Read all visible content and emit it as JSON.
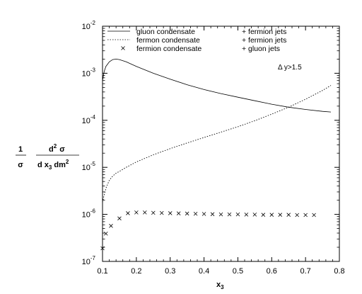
{
  "chart_data": {
    "type": "line",
    "title": "",
    "xlabel": "x",
    "xlabel_sub": "3",
    "ylabel": {
      "numerator_1": "1",
      "denominator_1": "σ",
      "numerator_2": "d",
      "numerator_2_sup": "2",
      "numerator_2_rest": "σ",
      "denominator_2a": "d x",
      "denominator_2_sub": "3",
      "denominator_2b": "dm",
      "denominator_2_sup": "2"
    },
    "xlim": [
      0.1,
      0.8
    ],
    "ylim": [
      1e-07,
      0.01
    ],
    "yscale": "log",
    "x_ticks": [
      "0.1",
      "0.2",
      "0.3",
      "0.4",
      "0.5",
      "0.6",
      "0.7",
      "0.8"
    ],
    "x_tick_values": [
      0.1,
      0.2,
      0.3,
      0.4,
      0.5,
      0.6,
      0.7,
      0.8
    ],
    "y_ticks": [
      {
        "base": "10",
        "exp": "-7"
      },
      {
        "base": "10",
        "exp": "-6"
      },
      {
        "base": "10",
        "exp": "-5"
      },
      {
        "base": "10",
        "exp": "-4"
      },
      {
        "base": "10",
        "exp": "-3"
      },
      {
        "base": "10",
        "exp": "-2"
      }
    ],
    "y_tick_values": [
      1e-07,
      1e-06,
      1e-05,
      0.0001,
      0.001,
      0.01
    ],
    "grid": false,
    "legend_position": "top-right",
    "annotation": {
      "text": "Δ y>1.5"
    },
    "series": [
      {
        "name": "gluon condensate + fermion jets",
        "style": "solid",
        "x": [
          0.1,
          0.105,
          0.11,
          0.12,
          0.13,
          0.14,
          0.15,
          0.17,
          0.2,
          0.25,
          0.3,
          0.35,
          0.4,
          0.45,
          0.5,
          0.55,
          0.6,
          0.65,
          0.7,
          0.75,
          0.775
        ],
        "y": [
          0.0007,
          0.0011,
          0.0014,
          0.00175,
          0.00195,
          0.002,
          0.00195,
          0.00175,
          0.0014,
          0.001,
          0.00075,
          0.00057,
          0.00045,
          0.00037,
          0.00031,
          0.00026,
          0.00022,
          0.00019,
          0.00017,
          0.000155,
          0.00015
        ]
      },
      {
        "name": "fermon condensate + fermion jets",
        "style": "dotted",
        "x": [
          0.1,
          0.105,
          0.11,
          0.12,
          0.13,
          0.14,
          0.15,
          0.17,
          0.2,
          0.25,
          0.3,
          0.35,
          0.4,
          0.45,
          0.5,
          0.55,
          0.6,
          0.65,
          0.7,
          0.75,
          0.775
        ],
        "y": [
          1.8e-06,
          2.6e-06,
          3.6e-06,
          5.3e-06,
          6.5e-06,
          7.5e-06,
          8.2e-06,
          1e-05,
          1.3e-05,
          1.85e-05,
          2.5e-05,
          3.3e-05,
          4.3e-05,
          5.6e-05,
          7.3e-05,
          9.8e-05,
          0.000135,
          0.00019,
          0.00028,
          0.00043,
          0.00055
        ]
      },
      {
        "name": "fermion condensate + gluon jets",
        "style": "marker-x",
        "x": [
          0.1,
          0.11,
          0.125,
          0.15,
          0.175,
          0.2,
          0.225,
          0.25,
          0.275,
          0.3,
          0.325,
          0.35,
          0.375,
          0.4,
          0.425,
          0.45,
          0.475,
          0.5,
          0.525,
          0.55,
          0.575,
          0.6,
          0.625,
          0.65,
          0.675,
          0.7,
          0.725
        ],
        "y": [
          1.9e-07,
          3.9e-07,
          5.7e-07,
          8.2e-07,
          1.06e-06,
          1.1e-06,
          1.1e-06,
          1.08e-06,
          1.07e-06,
          1.06e-06,
          1.05e-06,
          1.04e-06,
          1.03e-06,
          1.02e-06,
          1.01e-06,
          1e-06,
          1e-06,
          1e-06,
          9.9e-07,
          9.9e-07,
          9.8e-07,
          9.8e-07,
          9.8e-07,
          9.8e-07,
          9.7e-07,
          9.7e-07,
          9.7e-07
        ]
      }
    ],
    "legend": [
      {
        "left": "gluon  condensate",
        "right": "+  fermion  jets"
      },
      {
        "left": "fermon  condensate",
        "right": "+  fermion  jets"
      },
      {
        "left": "fermion  condensate",
        "right": "+  gluon  jets"
      }
    ]
  }
}
